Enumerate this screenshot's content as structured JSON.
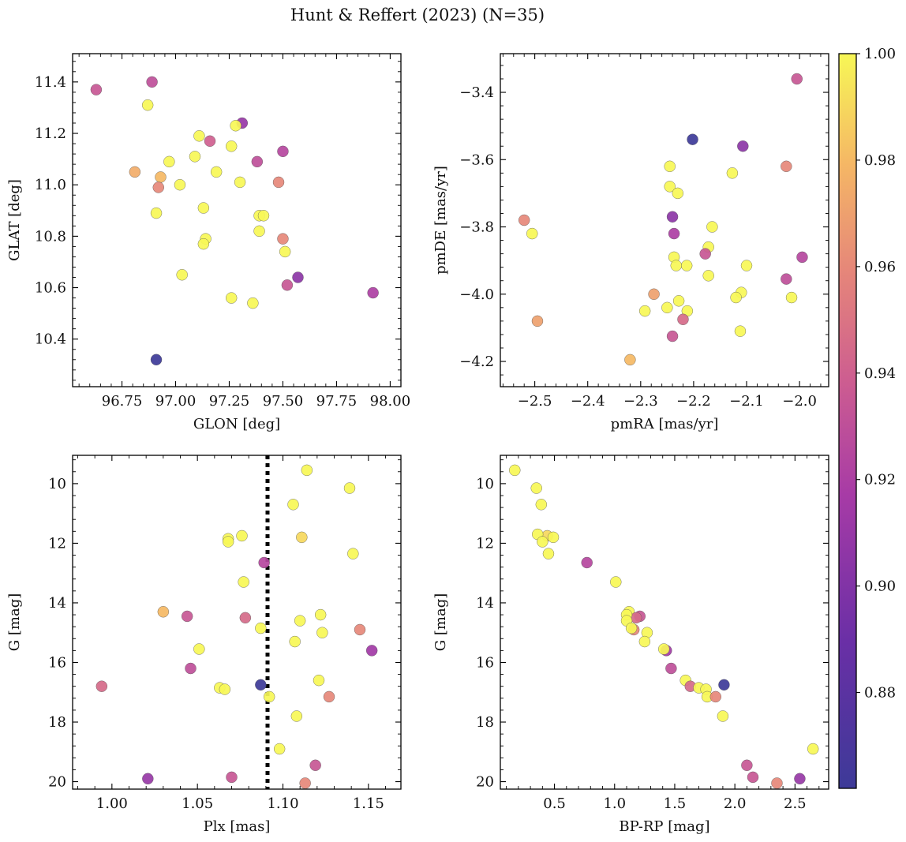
{
  "title": "Hunt & Reffert (2023) (N=35)",
  "colorbar": {
    "ticks": [
      "0.88",
      "0.90",
      "0.92",
      "0.94",
      "0.96",
      "0.98",
      "1.00"
    ],
    "tick_values": [
      0.88,
      0.9,
      0.92,
      0.94,
      0.96,
      0.98,
      1.0
    ],
    "range": [
      0.862,
      1.0
    ],
    "colormap": "plasma"
  },
  "chart_data": [
    {
      "type": "scatter",
      "xlabel": "GLON [deg]",
      "ylabel": "GLAT [deg]",
      "xlim": [
        96.52,
        98.05
      ],
      "ylim": [
        10.215,
        11.51
      ],
      "xticks": [
        96.75,
        97.0,
        97.25,
        97.5,
        97.75,
        98.0
      ],
      "xticklabels": [
        "96.75",
        "97.00",
        "97.25",
        "97.50",
        "97.75",
        "98.00"
      ],
      "yticks": [
        10.4,
        10.6,
        10.8,
        11.0,
        11.2,
        11.4
      ],
      "yticklabels": [
        "10.4",
        "10.6",
        "10.8",
        "11.0",
        "11.2",
        "11.4"
      ],
      "points": [
        {
          "x": 96.63,
          "y": 11.37,
          "c": 0.935
        },
        {
          "x": 96.89,
          "y": 11.4,
          "c": 0.93
        },
        {
          "x": 96.87,
          "y": 11.31,
          "c": 1.0
        },
        {
          "x": 97.31,
          "y": 11.24,
          "c": 0.91
        },
        {
          "x": 97.28,
          "y": 11.23,
          "c": 1.0
        },
        {
          "x": 97.11,
          "y": 11.19,
          "c": 1.0
        },
        {
          "x": 97.16,
          "y": 11.17,
          "c": 0.94
        },
        {
          "x": 97.26,
          "y": 11.15,
          "c": 1.0
        },
        {
          "x": 97.5,
          "y": 11.13,
          "c": 0.925
        },
        {
          "x": 97.09,
          "y": 11.11,
          "c": 1.0
        },
        {
          "x": 96.97,
          "y": 11.09,
          "c": 1.0
        },
        {
          "x": 97.38,
          "y": 11.09,
          "c": 0.93
        },
        {
          "x": 96.81,
          "y": 11.05,
          "c": 0.975
        },
        {
          "x": 97.19,
          "y": 11.05,
          "c": 1.0
        },
        {
          "x": 96.93,
          "y": 11.03,
          "c": 0.98
        },
        {
          "x": 97.3,
          "y": 11.01,
          "c": 1.0
        },
        {
          "x": 97.48,
          "y": 11.01,
          "c": 0.96
        },
        {
          "x": 97.02,
          "y": 11.0,
          "c": 1.0
        },
        {
          "x": 96.92,
          "y": 10.99,
          "c": 0.96
        },
        {
          "x": 97.13,
          "y": 10.91,
          "c": 1.0
        },
        {
          "x": 96.91,
          "y": 10.89,
          "c": 1.0
        },
        {
          "x": 97.39,
          "y": 10.88,
          "c": 1.0
        },
        {
          "x": 97.41,
          "y": 10.88,
          "c": 1.0
        },
        {
          "x": 97.39,
          "y": 10.82,
          "c": 1.0
        },
        {
          "x": 97.5,
          "y": 10.79,
          "c": 0.96
        },
        {
          "x": 97.14,
          "y": 10.79,
          "c": 1.0
        },
        {
          "x": 97.13,
          "y": 10.77,
          "c": 1.0
        },
        {
          "x": 97.51,
          "y": 10.74,
          "c": 1.0
        },
        {
          "x": 97.03,
          "y": 10.65,
          "c": 1.0
        },
        {
          "x": 97.57,
          "y": 10.64,
          "c": 0.905
        },
        {
          "x": 97.52,
          "y": 10.61,
          "c": 0.935
        },
        {
          "x": 97.92,
          "y": 10.58,
          "c": 0.92
        },
        {
          "x": 97.26,
          "y": 10.56,
          "c": 1.0
        },
        {
          "x": 97.36,
          "y": 10.54,
          "c": 1.0
        },
        {
          "x": 96.91,
          "y": 10.32,
          "c": 0.862
        }
      ]
    },
    {
      "type": "scatter",
      "xlabel": "pmRA [mas/yr]",
      "ylabel": "pmDE [mas/yr]",
      "xlim": [
        -2.565,
        -1.945
      ],
      "ylim": [
        -4.275,
        -3.285
      ],
      "xticks": [
        -2.5,
        -2.4,
        -2.3,
        -2.2,
        -2.1,
        -2.0
      ],
      "xticklabels": [
        "−2.5",
        "−2.4",
        "−2.3",
        "−2.2",
        "−2.1",
        "−2.0"
      ],
      "yticks": [
        -4.2,
        -4.0,
        -3.8,
        -3.6,
        -3.4
      ],
      "yticklabels": [
        "−4.2",
        "−4.0",
        "−3.8",
        "−3.6",
        "−3.4"
      ],
      "points": [
        {
          "x": -2.005,
          "y": -3.36,
          "c": 0.935
        },
        {
          "x": -2.202,
          "y": -3.54,
          "c": 0.862
        },
        {
          "x": -2.107,
          "y": -3.56,
          "c": 0.905
        },
        {
          "x": -2.245,
          "y": -3.62,
          "c": 1.0
        },
        {
          "x": -2.025,
          "y": -3.62,
          "c": 0.96
        },
        {
          "x": -2.127,
          "y": -3.64,
          "c": 1.0
        },
        {
          "x": -2.245,
          "y": -3.68,
          "c": 1.0
        },
        {
          "x": -2.23,
          "y": -3.7,
          "c": 1.0
        },
        {
          "x": -2.24,
          "y": -3.77,
          "c": 0.905
        },
        {
          "x": -2.52,
          "y": -3.78,
          "c": 0.96
        },
        {
          "x": -2.165,
          "y": -3.8,
          "c": 1.0
        },
        {
          "x": -2.505,
          "y": -3.82,
          "c": 1.0
        },
        {
          "x": -2.237,
          "y": -3.82,
          "c": 0.92
        },
        {
          "x": -2.172,
          "y": -3.86,
          "c": 1.0
        },
        {
          "x": -2.178,
          "y": -3.88,
          "c": 0.935
        },
        {
          "x": -1.995,
          "y": -3.89,
          "c": 0.925
        },
        {
          "x": -2.237,
          "y": -3.89,
          "c": 1.0
        },
        {
          "x": -2.233,
          "y": -3.915,
          "c": 1.0
        },
        {
          "x": -2.213,
          "y": -3.915,
          "c": 1.0
        },
        {
          "x": -2.1,
          "y": -3.915,
          "c": 1.0
        },
        {
          "x": -2.172,
          "y": -3.945,
          "c": 1.0
        },
        {
          "x": -2.025,
          "y": -3.955,
          "c": 0.93
        },
        {
          "x": -2.275,
          "y": -4.0,
          "c": 0.97
        },
        {
          "x": -2.11,
          "y": -3.995,
          "c": 1.0
        },
        {
          "x": -2.015,
          "y": -4.01,
          "c": 1.0
        },
        {
          "x": -2.12,
          "y": -4.01,
          "c": 1.0
        },
        {
          "x": -2.228,
          "y": -4.02,
          "c": 1.0
        },
        {
          "x": -2.25,
          "y": -4.04,
          "c": 1.0
        },
        {
          "x": -2.292,
          "y": -4.05,
          "c": 1.0
        },
        {
          "x": -2.212,
          "y": -4.05,
          "c": 1.0
        },
        {
          "x": -2.22,
          "y": -4.075,
          "c": 0.945
        },
        {
          "x": -2.495,
          "y": -4.08,
          "c": 0.97
        },
        {
          "x": -2.112,
          "y": -4.11,
          "c": 1.0
        },
        {
          "x": -2.24,
          "y": -4.125,
          "c": 0.935
        },
        {
          "x": -2.32,
          "y": -4.195,
          "c": 0.98
        }
      ]
    },
    {
      "type": "scatter",
      "xlabel": "Plx [mas]",
      "ylabel": "G [mag]",
      "xlim": [
        0.977,
        1.169
      ],
      "ylim": [
        20.25,
        9.05
      ],
      "xticks": [
        1.0,
        1.05,
        1.1,
        1.15
      ],
      "xticklabels": [
        "1.00",
        "1.05",
        "1.10",
        "1.15"
      ],
      "yticks": [
        10,
        12,
        14,
        16,
        18,
        20
      ],
      "yticklabels": [
        "10",
        "12",
        "14",
        "16",
        "18",
        "20"
      ],
      "vline": {
        "x": 1.091,
        "style": "dotted",
        "color": "#000000"
      },
      "points": [
        {
          "x": 1.114,
          "y": 9.55,
          "c": 1.0
        },
        {
          "x": 1.139,
          "y": 10.15,
          "c": 1.0
        },
        {
          "x": 1.106,
          "y": 10.7,
          "c": 1.0
        },
        {
          "x": 1.111,
          "y": 11.8,
          "c": 0.99
        },
        {
          "x": 1.076,
          "y": 11.75,
          "c": 1.0
        },
        {
          "x": 1.068,
          "y": 11.85,
          "c": 1.0
        },
        {
          "x": 1.068,
          "y": 11.95,
          "c": 1.0
        },
        {
          "x": 1.141,
          "y": 12.35,
          "c": 1.0
        },
        {
          "x": 1.089,
          "y": 12.65,
          "c": 0.925
        },
        {
          "x": 1.077,
          "y": 13.3,
          "c": 1.0
        },
        {
          "x": 1.03,
          "y": 14.3,
          "c": 0.98
        },
        {
          "x": 1.044,
          "y": 14.45,
          "c": 0.935
        },
        {
          "x": 1.122,
          "y": 14.4,
          "c": 1.0
        },
        {
          "x": 1.078,
          "y": 14.5,
          "c": 0.945
        },
        {
          "x": 1.11,
          "y": 14.6,
          "c": 1.0
        },
        {
          "x": 1.087,
          "y": 14.85,
          "c": 1.0
        },
        {
          "x": 1.145,
          "y": 14.9,
          "c": 0.96
        },
        {
          "x": 1.123,
          "y": 15.0,
          "c": 1.0
        },
        {
          "x": 1.107,
          "y": 15.3,
          "c": 1.0
        },
        {
          "x": 1.051,
          "y": 15.55,
          "c": 1.0
        },
        {
          "x": 1.152,
          "y": 15.6,
          "c": 0.915
        },
        {
          "x": 1.046,
          "y": 16.2,
          "c": 0.93
        },
        {
          "x": 1.121,
          "y": 16.6,
          "c": 1.0
        },
        {
          "x": 1.087,
          "y": 16.75,
          "c": 0.862
        },
        {
          "x": 0.994,
          "y": 16.8,
          "c": 0.945
        },
        {
          "x": 1.063,
          "y": 16.85,
          "c": 1.0
        },
        {
          "x": 1.066,
          "y": 16.9,
          "c": 1.0
        },
        {
          "x": 1.092,
          "y": 17.15,
          "c": 1.0
        },
        {
          "x": 1.127,
          "y": 17.15,
          "c": 0.96
        },
        {
          "x": 1.108,
          "y": 17.8,
          "c": 1.0
        },
        {
          "x": 1.098,
          "y": 18.9,
          "c": 1.0
        },
        {
          "x": 1.119,
          "y": 19.45,
          "c": 0.935
        },
        {
          "x": 1.021,
          "y": 19.9,
          "c": 0.91
        },
        {
          "x": 1.07,
          "y": 19.85,
          "c": 0.935
        },
        {
          "x": 1.113,
          "y": 20.05,
          "c": 0.96
        }
      ]
    },
    {
      "type": "scatter",
      "xlabel": "BP-RP [mag]",
      "ylabel": "G [mag]",
      "xlim": [
        0.05,
        2.78
      ],
      "ylim": [
        20.25,
        9.05
      ],
      "xticks": [
        0.5,
        1.0,
        1.5,
        2.0,
        2.5
      ],
      "xticklabels": [
        "0.5",
        "1.0",
        "1.5",
        "2.0",
        "2.5"
      ],
      "yticks": [
        10,
        12,
        14,
        16,
        18,
        20
      ],
      "yticklabels": [
        "10",
        "12",
        "14",
        "16",
        "18",
        "20"
      ],
      "points": [
        {
          "x": 0.17,
          "y": 9.55,
          "c": 1.0
        },
        {
          "x": 0.35,
          "y": 10.15,
          "c": 1.0
        },
        {
          "x": 0.39,
          "y": 10.7,
          "c": 1.0
        },
        {
          "x": 0.44,
          "y": 11.75,
          "c": 0.99
        },
        {
          "x": 0.36,
          "y": 11.7,
          "c": 1.0
        },
        {
          "x": 0.4,
          "y": 11.95,
          "c": 1.0
        },
        {
          "x": 0.49,
          "y": 11.8,
          "c": 1.0
        },
        {
          "x": 0.45,
          "y": 12.35,
          "c": 1.0
        },
        {
          "x": 0.77,
          "y": 12.65,
          "c": 0.925
        },
        {
          "x": 1.01,
          "y": 13.3,
          "c": 1.0
        },
        {
          "x": 1.12,
          "y": 14.3,
          "c": 1.0
        },
        {
          "x": 1.21,
          "y": 14.45,
          "c": 0.935
        },
        {
          "x": 1.18,
          "y": 14.5,
          "c": 0.945
        },
        {
          "x": 1.1,
          "y": 14.4,
          "c": 1.0
        },
        {
          "x": 1.1,
          "y": 14.6,
          "c": 1.0
        },
        {
          "x": 1.16,
          "y": 14.9,
          "c": 0.96
        },
        {
          "x": 1.14,
          "y": 14.85,
          "c": 1.0
        },
        {
          "x": 1.27,
          "y": 15.0,
          "c": 1.0
        },
        {
          "x": 1.25,
          "y": 15.3,
          "c": 1.0
        },
        {
          "x": 1.43,
          "y": 15.6,
          "c": 0.915
        },
        {
          "x": 1.41,
          "y": 15.55,
          "c": 1.0
        },
        {
          "x": 1.47,
          "y": 16.2,
          "c": 0.93
        },
        {
          "x": 1.59,
          "y": 16.6,
          "c": 1.0
        },
        {
          "x": 1.63,
          "y": 16.8,
          "c": 0.945
        },
        {
          "x": 1.91,
          "y": 16.75,
          "c": 0.862
        },
        {
          "x": 1.7,
          "y": 16.85,
          "c": 1.0
        },
        {
          "x": 1.76,
          "y": 16.9,
          "c": 1.0
        },
        {
          "x": 1.77,
          "y": 17.15,
          "c": 1.0
        },
        {
          "x": 1.84,
          "y": 17.15,
          "c": 0.96
        },
        {
          "x": 1.9,
          "y": 17.8,
          "c": 1.0
        },
        {
          "x": 2.65,
          "y": 18.9,
          "c": 1.0
        },
        {
          "x": 2.1,
          "y": 19.45,
          "c": 0.935
        },
        {
          "x": 2.15,
          "y": 19.85,
          "c": 0.935
        },
        {
          "x": 2.35,
          "y": 20.05,
          "c": 0.96
        },
        {
          "x": 2.54,
          "y": 19.9,
          "c": 0.91
        }
      ]
    }
  ]
}
